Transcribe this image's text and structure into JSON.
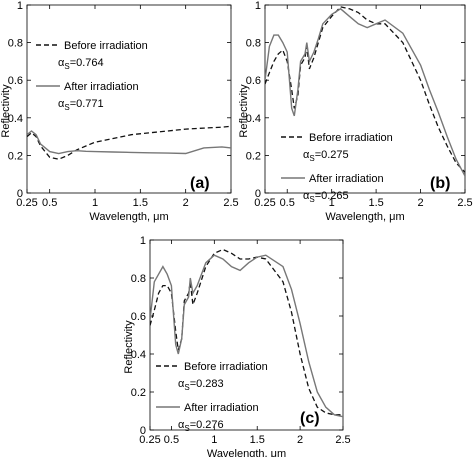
{
  "chart_data": [
    {
      "type": "line",
      "panel_label": "(a)",
      "xlabel": "Wavelength, μm",
      "ylabel": "Reflectivity",
      "xlim": [
        0.25,
        2.5
      ],
      "ylim": [
        0,
        1
      ],
      "x_ticks": [
        "0.25",
        "0.5",
        "1",
        "1.5",
        "2",
        "2.5"
      ],
      "x_tick_values": [
        0.25,
        0.5,
        1,
        1.5,
        2,
        2.5
      ],
      "y_ticks": [
        "0",
        "0.2",
        "0.4",
        "0.6",
        "0.8",
        "1"
      ],
      "y_tick_values": [
        0,
        0.2,
        0.4,
        0.6,
        0.8,
        1
      ],
      "grid": false,
      "legend_position": "upper-left",
      "series": [
        {
          "name": "Before irradiation",
          "style": "dashed",
          "alpha_label": "α",
          "alpha_sub": "S",
          "alpha_value": "=0.764",
          "x": [
            0.25,
            0.3,
            0.35,
            0.4,
            0.5,
            0.6,
            0.7,
            0.8,
            0.9,
            1.0,
            1.2,
            1.4,
            1.6,
            1.8,
            2.0,
            2.2,
            2.4,
            2.5
          ],
          "y": [
            0.3,
            0.32,
            0.3,
            0.25,
            0.19,
            0.18,
            0.2,
            0.23,
            0.25,
            0.27,
            0.29,
            0.31,
            0.32,
            0.33,
            0.34,
            0.345,
            0.35,
            0.355
          ]
        },
        {
          "name": "After irradiation",
          "style": "solid",
          "alpha_label": "α",
          "alpha_sub": "S",
          "alpha_value": "=0.771",
          "x": [
            0.25,
            0.3,
            0.35,
            0.4,
            0.5,
            0.6,
            0.7,
            0.8,
            0.9,
            1.0,
            1.2,
            1.4,
            1.6,
            1.8,
            2.0,
            2.2,
            2.4,
            2.5
          ],
          "y": [
            0.31,
            0.33,
            0.31,
            0.26,
            0.22,
            0.21,
            0.22,
            0.225,
            0.222,
            0.22,
            0.218,
            0.216,
            0.214,
            0.212,
            0.21,
            0.24,
            0.245,
            0.24
          ]
        }
      ]
    },
    {
      "type": "line",
      "panel_label": "(b)",
      "xlabel": "Wavelength, μm",
      "ylabel": "Reflectivity",
      "xlim": [
        0.25,
        2.5
      ],
      "ylim": [
        0,
        1
      ],
      "x_ticks": [
        "0.25",
        "0.5",
        "1",
        "1.5",
        "2",
        "2.5"
      ],
      "x_tick_values": [
        0.25,
        0.5,
        1,
        1.5,
        2,
        2.5
      ],
      "y_ticks": [
        "0",
        "0.2",
        "0.4",
        "0.6",
        "0.8",
        "1"
      ],
      "y_tick_values": [
        0,
        0.2,
        0.4,
        0.6,
        0.8,
        1
      ],
      "grid": false,
      "legend_position": "lower-left",
      "series": [
        {
          "name": "Before irradiation",
          "style": "dashed",
          "alpha_label": "α",
          "alpha_sub": "S",
          "alpha_value": "=0.275",
          "x": [
            0.25,
            0.3,
            0.35,
            0.4,
            0.45,
            0.5,
            0.55,
            0.58,
            0.62,
            0.65,
            0.7,
            0.72,
            0.75,
            0.8,
            0.85,
            0.9,
            1.0,
            1.1,
            1.2,
            1.3,
            1.4,
            1.5,
            1.6,
            1.8,
            2.0,
            2.1,
            2.2,
            2.3,
            2.4,
            2.5
          ],
          "y": [
            0.58,
            0.64,
            0.7,
            0.74,
            0.76,
            0.7,
            0.55,
            0.45,
            0.52,
            0.68,
            0.72,
            0.78,
            0.66,
            0.72,
            0.8,
            0.88,
            0.94,
            0.99,
            0.98,
            0.96,
            0.92,
            0.9,
            0.9,
            0.8,
            0.6,
            0.47,
            0.35,
            0.25,
            0.16,
            0.11
          ]
        },
        {
          "name": "After irradiation",
          "style": "solid",
          "alpha_label": "α",
          "alpha_sub": "S",
          "alpha_value": "=0.265",
          "x": [
            0.25,
            0.3,
            0.35,
            0.4,
            0.45,
            0.5,
            0.55,
            0.58,
            0.62,
            0.65,
            0.7,
            0.72,
            0.75,
            0.8,
            0.85,
            0.9,
            1.0,
            1.1,
            1.2,
            1.3,
            1.4,
            1.5,
            1.6,
            1.8,
            2.0,
            2.1,
            2.2,
            2.3,
            2.4,
            2.5
          ],
          "y": [
            0.6,
            0.78,
            0.84,
            0.84,
            0.8,
            0.75,
            0.45,
            0.41,
            0.55,
            0.7,
            0.74,
            0.8,
            0.7,
            0.75,
            0.82,
            0.9,
            0.95,
            0.98,
            0.94,
            0.9,
            0.88,
            0.9,
            0.92,
            0.85,
            0.68,
            0.55,
            0.43,
            0.3,
            0.18,
            0.09
          ]
        }
      ]
    },
    {
      "type": "line",
      "panel_label": "(c)",
      "xlabel": "Wavelength, μm",
      "ylabel": "Reflectivity",
      "xlim": [
        0.25,
        2.5
      ],
      "ylim": [
        0,
        1
      ],
      "x_ticks": [
        "0.25",
        "0.5",
        "1",
        "1.5",
        "2",
        "2.5"
      ],
      "x_tick_values": [
        0.25,
        0.5,
        1,
        1.5,
        2,
        2.5
      ],
      "y_ticks": [
        "0",
        "0.2",
        "0.4",
        "0.6",
        "0.8",
        "1"
      ],
      "y_tick_values": [
        0,
        0.2,
        0.4,
        0.6,
        0.8,
        1
      ],
      "grid": false,
      "legend_position": "lower-left",
      "series": [
        {
          "name": "Before irradiation",
          "style": "dashed",
          "alpha_label": "α",
          "alpha_sub": "S",
          "alpha_value": "=0.283",
          "x": [
            0.25,
            0.3,
            0.35,
            0.4,
            0.45,
            0.5,
            0.55,
            0.58,
            0.62,
            0.65,
            0.7,
            0.72,
            0.75,
            0.8,
            0.9,
            1.0,
            1.1,
            1.2,
            1.3,
            1.4,
            1.5,
            1.6,
            1.8,
            1.9,
            2.0,
            2.1,
            2.2,
            2.3,
            2.4,
            2.5
          ],
          "y": [
            0.55,
            0.63,
            0.72,
            0.76,
            0.76,
            0.72,
            0.52,
            0.42,
            0.48,
            0.68,
            0.72,
            0.78,
            0.66,
            0.72,
            0.86,
            0.93,
            0.95,
            0.93,
            0.9,
            0.9,
            0.91,
            0.9,
            0.78,
            0.62,
            0.4,
            0.22,
            0.12,
            0.09,
            0.08,
            0.08
          ]
        },
        {
          "name": "After irradiation",
          "style": "solid",
          "alpha_label": "α",
          "alpha_sub": "S",
          "alpha_value": "=0.276",
          "x": [
            0.25,
            0.3,
            0.35,
            0.4,
            0.45,
            0.5,
            0.55,
            0.58,
            0.62,
            0.65,
            0.7,
            0.72,
            0.75,
            0.8,
            0.9,
            1.0,
            1.1,
            1.2,
            1.3,
            1.4,
            1.5,
            1.6,
            1.8,
            1.9,
            2.0,
            2.1,
            2.2,
            2.3,
            2.4,
            2.5
          ],
          "y": [
            0.58,
            0.78,
            0.82,
            0.86,
            0.82,
            0.76,
            0.45,
            0.4,
            0.48,
            0.66,
            0.7,
            0.8,
            0.72,
            0.76,
            0.88,
            0.92,
            0.9,
            0.86,
            0.84,
            0.88,
            0.91,
            0.92,
            0.86,
            0.74,
            0.56,
            0.36,
            0.2,
            0.12,
            0.08,
            0.07
          ]
        }
      ]
    }
  ]
}
